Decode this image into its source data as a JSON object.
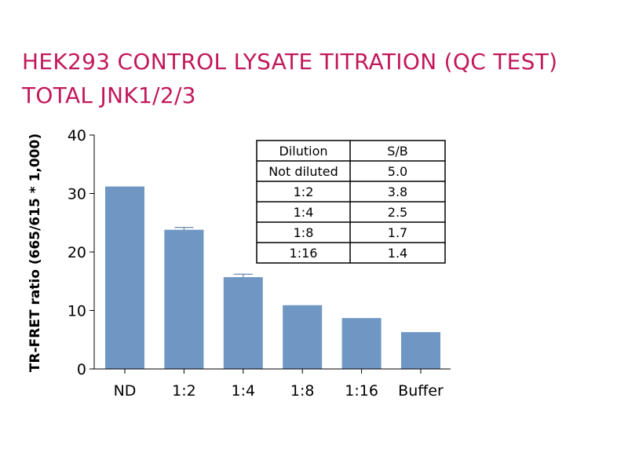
{
  "title": "HEK293 CONTROL LYSATE TITRATION (QC TEST)",
  "subtitle": "TOTAL JNK1/2/3",
  "colors": {
    "title": "#c2185b",
    "bar": "#7097c3",
    "axis": "#000000"
  },
  "chart_data": {
    "type": "bar",
    "title": "HEK293 CONTROL LYSATE TITRATION (QC TEST)",
    "subtitle": "TOTAL JNK1/2/3",
    "xlabel": "",
    "ylabel": "TR-FRET ratio (665/615 * 1,000)",
    "categories": [
      "ND",
      "1:2",
      "1:4",
      "1:8",
      "1:16",
      "Buffer"
    ],
    "values": [
      31.2,
      23.8,
      15.7,
      10.9,
      8.7,
      6.3
    ],
    "errors": [
      0,
      0.4,
      0.5,
      0,
      0,
      0
    ],
    "ylim": [
      0,
      40
    ],
    "yticks": [
      0,
      10,
      20,
      30,
      40
    ],
    "grid": false,
    "legend": "none",
    "inset_table": {
      "headers": [
        "Dilution",
        "S/B"
      ],
      "rows": [
        [
          "Not diluted",
          "5.0"
        ],
        [
          "1:2",
          "3.8"
        ],
        [
          "1:4",
          "2.5"
        ],
        [
          "1:8",
          "1.7"
        ],
        [
          "1:16",
          "1.4"
        ]
      ]
    }
  }
}
